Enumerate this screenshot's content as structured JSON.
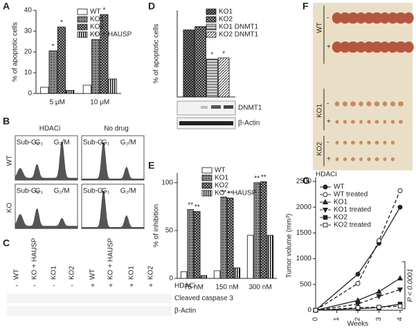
{
  "letters": [
    "A",
    "B",
    "C",
    "D",
    "E",
    "F",
    "G"
  ],
  "chart_data": [
    {
      "type": "bar",
      "ylabel": "% of apoptotic cells",
      "categories": [
        "5 μM",
        "10 μM"
      ],
      "ylim": [
        0,
        40
      ],
      "yticks": [
        0,
        10,
        20,
        30,
        40
      ],
      "legend": "upper right",
      "series": [
        {
          "name": "WT",
          "color": "#ffffff",
          "hatch": "none",
          "values": [
            3,
            4
          ]
        },
        {
          "name": "KO1",
          "color": "#8a8a8a",
          "hatch": "dots",
          "values": [
            20.5,
            26
          ],
          "significance": [
            "*",
            "*"
          ]
        },
        {
          "name": "KO2",
          "color": "#b5b5b5",
          "hatch": "crosshatch",
          "values": [
            32,
            38
          ],
          "significance": [
            "*",
            "*"
          ]
        },
        {
          "name": "KO + HAUSP",
          "color": "#ffffff",
          "hatch": "vertical",
          "values": [
            1.5,
            7
          ]
        }
      ]
    },
    {
      "type": "bar",
      "ylabel": "% of apoptotic cells",
      "categories": [
        null
      ],
      "ylim": [
        0,
        80
      ],
      "legend": "upper right",
      "series": [
        {
          "name": "KO1",
          "color": "#8a8a8a",
          "hatch": "crosshatch",
          "values": [
            62
          ]
        },
        {
          "name": "KO2",
          "color": "#b5b5b5",
          "hatch": "crosshatch",
          "values": [
            65
          ]
        },
        {
          "name": "KO1 DNMT1",
          "color": "#d5d5d5",
          "hatch": "horizontal",
          "values": [
            35
          ],
          "significance": [
            "*"
          ]
        },
        {
          "name": "KO2 DNMT1",
          "color": "#ffffff",
          "hatch": "diagonal",
          "values": [
            36
          ],
          "significance": [
            "*"
          ]
        }
      ]
    },
    {
      "type": "bar",
      "ylabel": "% of inhibition",
      "categories": [
        "75 nM",
        "150 nM",
        "300 nM"
      ],
      "ylim": [
        0,
        110
      ],
      "yticks": [
        0,
        50,
        100
      ],
      "legend": "upper right",
      "series": [
        {
          "name": "WT",
          "color": "#ffffff",
          "hatch": "none",
          "values": [
            7,
            8,
            45
          ]
        },
        {
          "name": "KO1",
          "color": "#8a8a8a",
          "hatch": "dots",
          "values": [
            72,
            85,
            100
          ],
          "significance": [
            "**",
            "**",
            "**"
          ]
        },
        {
          "name": "KO2",
          "color": "#b5b5b5",
          "hatch": "crosshatch",
          "values": [
            70,
            84,
            101
          ],
          "significance": [
            "**",
            "**",
            "**"
          ]
        },
        {
          "name": "KO + HAUSP",
          "color": "#ffffff",
          "hatch": "vertical",
          "values": [
            3,
            11,
            45
          ]
        }
      ]
    },
    {
      "type": "line",
      "ylabel": "Tumor volume (mm³)",
      "xlabel": "Weeks",
      "annotation": "P < 0.0001",
      "x": [
        0,
        2,
        3,
        4
      ],
      "xlim": [
        0,
        4
      ],
      "xticks": [
        0,
        1,
        2,
        3,
        4
      ],
      "ylim": [
        0,
        2500
      ],
      "yticks": [
        0,
        500,
        1000,
        1500,
        2000,
        2500
      ],
      "legend": "upper left",
      "series": [
        {
          "name": "WT",
          "color": "#222222",
          "marker": "circle",
          "filled": true,
          "dashed": false,
          "values": [
            0,
            700,
            1300,
            2000
          ]
        },
        {
          "name": "WT treated",
          "color": "#222222",
          "marker": "circle",
          "filled": false,
          "dashed": true,
          "values": [
            0,
            520,
            1350,
            2320
          ]
        },
        {
          "name": "KO1",
          "color": "#222222",
          "marker": "triangle",
          "filled": true,
          "dashed": false,
          "values": [
            0,
            190,
            360,
            620
          ]
        },
        {
          "name": "KO1 treated",
          "color": "#222222",
          "marker": "triangle-down",
          "filled": true,
          "dashed": true,
          "values": [
            0,
            120,
            270,
            400
          ]
        },
        {
          "name": "KO2",
          "color": "#222222",
          "marker": "square",
          "filled": true,
          "dashed": false,
          "values": [
            0,
            30,
            50,
            120
          ]
        },
        {
          "name": "KO2 treated",
          "color": "#222222",
          "marker": "square",
          "filled": false,
          "dashed": true,
          "values": [
            0,
            50,
            60,
            80
          ]
        }
      ]
    }
  ],
  "blot_D": {
    "bands": [
      "DNMT1",
      "β-Actin"
    ]
  },
  "flow_cytometry": {
    "columns": [
      "HDACi",
      "No drug"
    ],
    "rows": [
      "WT",
      "KO"
    ],
    "gates": [
      "Sub-G₁",
      "G₁",
      "G₂/M"
    ]
  },
  "western_blot": {
    "lanes": [
      "WT",
      "KO + HAUSP",
      "KO1",
      "KO2",
      "WT",
      "KO + HAUSP",
      "KO1",
      "KO2"
    ],
    "treatment_label": "HDACi",
    "treatment": [
      "-",
      "-",
      "-",
      "-",
      "+",
      "+",
      "+",
      "+"
    ],
    "bands": [
      "Cleaved caspase 3",
      "β-Actin"
    ]
  },
  "tumor_photo": {
    "title": "HDACi",
    "groups": [
      "WT",
      "KO1",
      "KO2"
    ],
    "signs": [
      "-",
      "+"
    ]
  }
}
